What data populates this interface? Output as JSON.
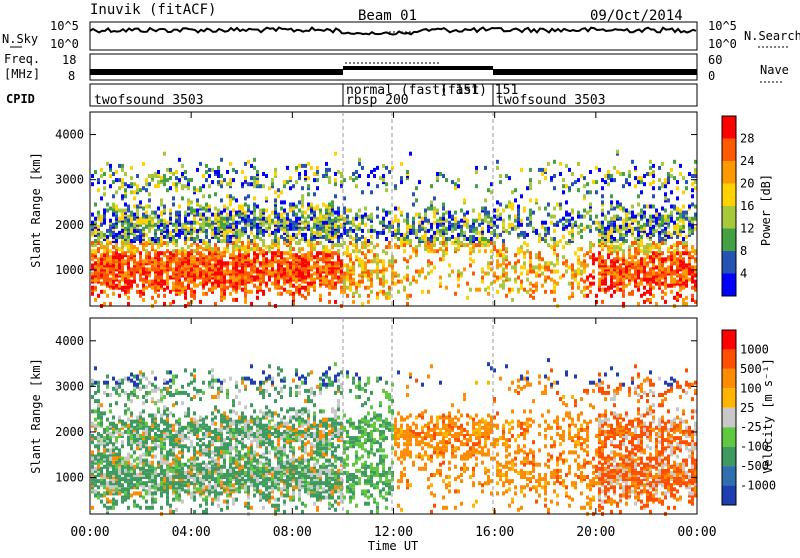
{
  "header": {
    "title": "Inuvik (fitACF)",
    "beam": "Beam 01",
    "date": "09/Oct/2014"
  },
  "panels": {
    "noise": {
      "left_label": "N.Sky",
      "right_label": "N.Search",
      "left_ticks": [
        "10^5",
        "10^0"
      ],
      "right_ticks": [
        "10^5",
        "10^0"
      ]
    },
    "freq": {
      "left_label_1": "Freq.",
      "left_label_2": "[MHz]",
      "right_label": "Nave",
      "left_ticks": [
        "18",
        "8"
      ],
      "right_ticks": [
        "60",
        "0"
      ]
    },
    "cpid": {
      "label": "CPID",
      "segments": [
        "twofsound 3503",
        "normal (fast) 151",
        "rbsp 200",
        "(fast) 151",
        "twofsound 3503"
      ]
    }
  },
  "chart_data": [
    {
      "type": "heatmap",
      "name": "power",
      "ylabel": "Slant Range [km]",
      "colorbar_label": "Power [dB]",
      "xlim": [
        "00:00",
        "00:00"
      ],
      "ylim": [
        200,
        4500
      ],
      "yticks": [
        1000,
        2000,
        3000,
        4000
      ],
      "colorbar_ticks": [
        "28",
        "24",
        "20",
        "16",
        "12",
        "8",
        "4"
      ],
      "colors": [
        "#0000ff",
        "#2453b3",
        "#43a043",
        "#a8c83c",
        "#ffd200",
        "#ff9900",
        "#ff5a00",
        "#ff0000"
      ]
    },
    {
      "type": "heatmap",
      "name": "velocity",
      "ylabel": "Slant Range [km]",
      "xlabel": "Time UT",
      "colorbar_label": "Velocity [m s⁻¹]",
      "xlim": [
        "00:00",
        "00:00"
      ],
      "ylim": [
        200,
        4500
      ],
      "yticks": [
        1000,
        2000,
        3000,
        4000
      ],
      "xticks": [
        "00:00",
        "04:00",
        "08:00",
        "12:00",
        "16:00",
        "20:00",
        "00:00"
      ],
      "colorbar_ticks": [
        "1000",
        "500",
        "100",
        "25",
        "-25",
        "-100",
        "-500",
        "-1000"
      ],
      "colors": [
        "#1f3fb0",
        "#2f6fb0",
        "#3f9a5f",
        "#5fc83f",
        "#c8c8c8",
        "#ffb400",
        "#ff8c00",
        "#ff5000",
        "#ff0000"
      ]
    }
  ]
}
